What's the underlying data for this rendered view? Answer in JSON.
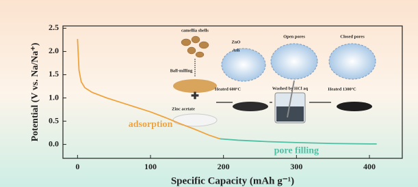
{
  "chart_data": {
    "type": "line",
    "xlabel": "Specific Capacity (mAh g⁻¹)",
    "ylabel": "Potential (V vs. Na/Na⁺)",
    "xlim": [
      -20,
      445
    ],
    "ylim": [
      -0.3,
      2.55
    ],
    "xticks": [
      0,
      100,
      200,
      300,
      400
    ],
    "yticks": [
      {
        "value": 0,
        "label": "0.0"
      },
      0.5,
      {
        "value": 1,
        "label": "1.0"
      },
      1.5,
      {
        "value": 2,
        "label": "2.0"
      },
      2.5
    ],
    "series": [
      {
        "name": "adsorption",
        "color": "#f0a33c",
        "x": [
          0,
          2,
          5,
          10,
          20,
          40,
          60,
          80,
          100,
          120,
          140,
          160,
          180,
          195
        ],
        "values": [
          2.27,
          1.6,
          1.35,
          1.22,
          1.12,
          1.0,
          0.9,
          0.8,
          0.7,
          0.58,
          0.45,
          0.33,
          0.2,
          0.12
        ]
      },
      {
        "name": "pore filling",
        "color": "#4fbfa3",
        "x": [
          195,
          220,
          260,
          300,
          350,
          400,
          410
        ],
        "values": [
          0.12,
          0.09,
          0.06,
          0.04,
          0.02,
          0.01,
          0.01
        ]
      }
    ],
    "annotations": [
      "camellia shells",
      "ZnO",
      "Ash",
      "Open pores",
      "Closed pores",
      "Ball-milling",
      "Zinc acetate",
      "Heated 600ºC",
      "Washed by HCl aq",
      "Heated 1300ºC"
    ]
  }
}
